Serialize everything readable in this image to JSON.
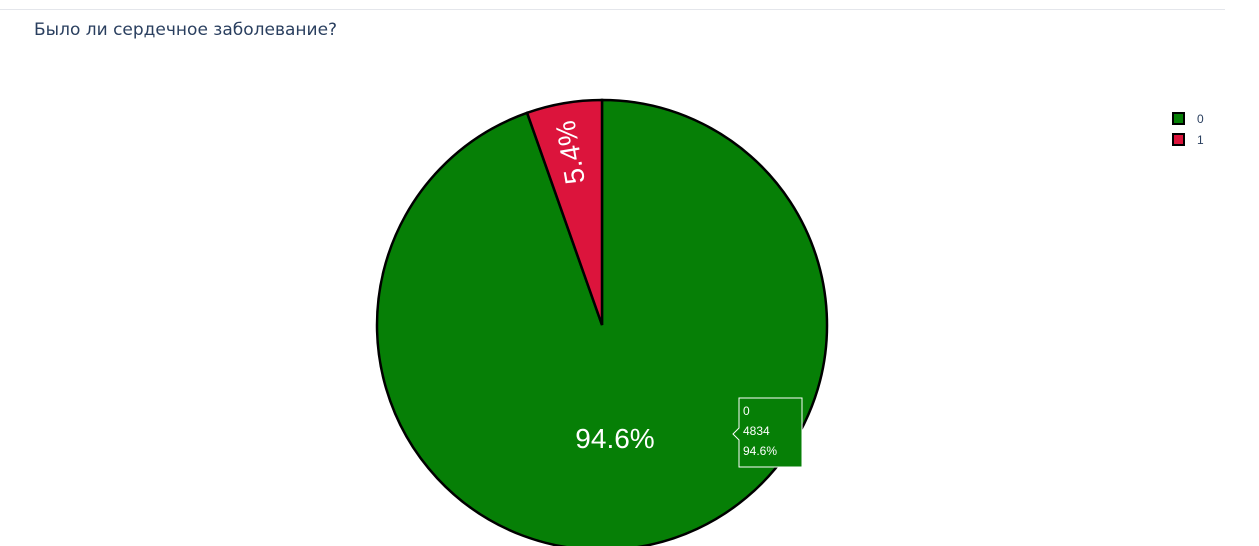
{
  "chart_data": {
    "type": "pie",
    "title": "Было ли сердечное заболевание?",
    "slices": [
      {
        "label": "0",
        "value": 4834,
        "percent_label": "94.6%",
        "color": "#067f06"
      },
      {
        "label": "1",
        "value": 276,
        "percent_label": "5.4%",
        "color": "#dc143c"
      }
    ],
    "legend": {
      "placement": "top-right",
      "items": [
        "0",
        "1"
      ]
    },
    "tooltip": {
      "label": "0",
      "value": "4834",
      "percent": "94.6%"
    }
  }
}
